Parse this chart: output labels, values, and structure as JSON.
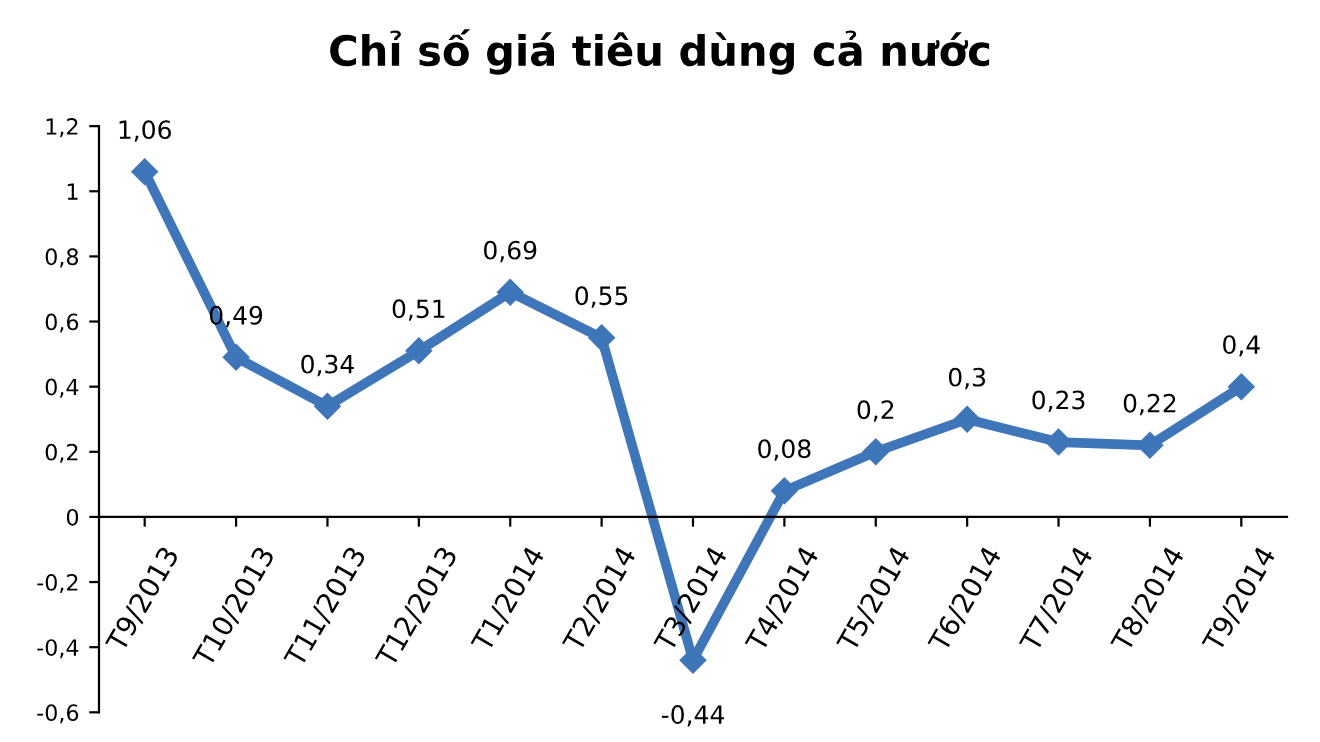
{
  "chart_data": {
    "type": "line",
    "title": "Chỉ số giá tiêu dùng cả nước",
    "categories": [
      "T9/2013",
      "T10/2013",
      "T11/2013",
      "T12/2013",
      "T1/2014",
      "T2/2014",
      "T3/2014",
      "T4/2014",
      "T5/2014",
      "T6/2014",
      "T7/2014",
      "T8/2014",
      "T9/2014"
    ],
    "series": [
      {
        "color": "#3f75b9",
        "values": [
          1.06,
          0.49,
          0.34,
          0.51,
          0.69,
          0.55,
          -0.44,
          0.08,
          0.2,
          0.3,
          0.23,
          0.22,
          0.4
        ],
        "value_labels": [
          "1,06",
          "0,49",
          "0,34",
          "0,51",
          "0,69",
          "0,55",
          "-0,44",
          "0,08",
          "0,2",
          "0,3",
          "0,23",
          "0,22",
          "0,4"
        ]
      }
    ],
    "ylim": [
      -0.6,
      1.2
    ],
    "yticks": [
      {
        "value": -0.6,
        "label": "-0,6"
      },
      {
        "value": -0.4,
        "label": "-0,4"
      },
      {
        "value": -0.2,
        "label": "-0,2"
      },
      0,
      {
        "value": 0.2,
        "label": "0,2"
      },
      {
        "value": 0.4,
        "label": "0,4"
      },
      {
        "value": 0.6,
        "label": "0,6"
      },
      {
        "value": 0.8,
        "label": "0,8"
      },
      1,
      {
        "value": 1.2,
        "label": "1,2"
      }
    ],
    "marker": "diamond",
    "line_style": "solid",
    "grid": false,
    "legend": false
  }
}
